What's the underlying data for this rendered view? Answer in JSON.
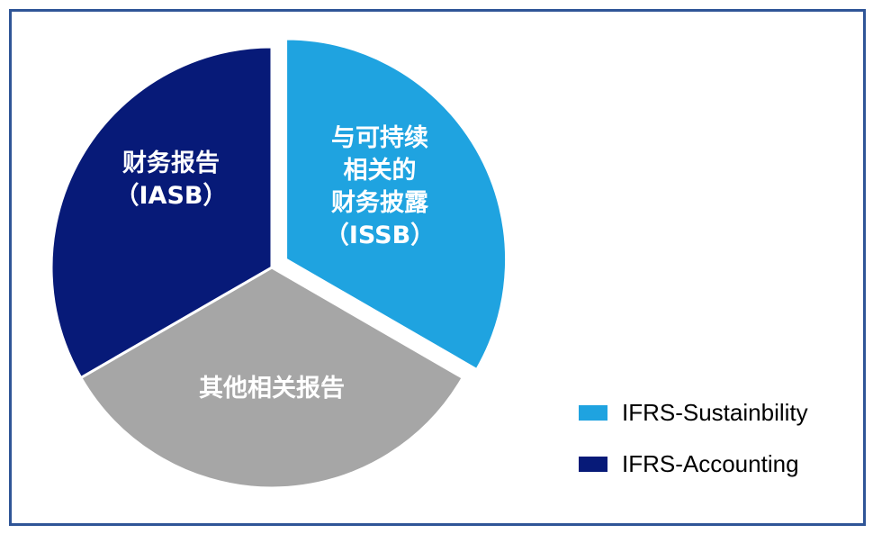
{
  "chart_data": {
    "type": "pie",
    "slices": [
      {
        "id": "issb",
        "lines": [
          "与可持续",
          "相关的",
          "财务披露",
          "（ISSB）"
        ],
        "value": 1,
        "color": "#1fa3e0",
        "exploded": true,
        "start_deg": -90,
        "end_deg": 30
      },
      {
        "id": "other",
        "lines": [
          "其他相关报告"
        ],
        "value": 1,
        "color": "#a6a6a6",
        "exploded": false,
        "start_deg": 30,
        "end_deg": 150
      },
      {
        "id": "iasb",
        "lines": [
          "财务报告",
          "（IASB）"
        ],
        "value": 1,
        "color": "#071a78",
        "exploded": false,
        "start_deg": 150,
        "end_deg": 270
      }
    ],
    "legend": [
      {
        "label": "IFRS-Sustainbility",
        "color": "#1fa3e0"
      },
      {
        "label": "IFRS-Accounting",
        "color": "#071a78"
      }
    ],
    "legend_position": "bottom-right"
  }
}
